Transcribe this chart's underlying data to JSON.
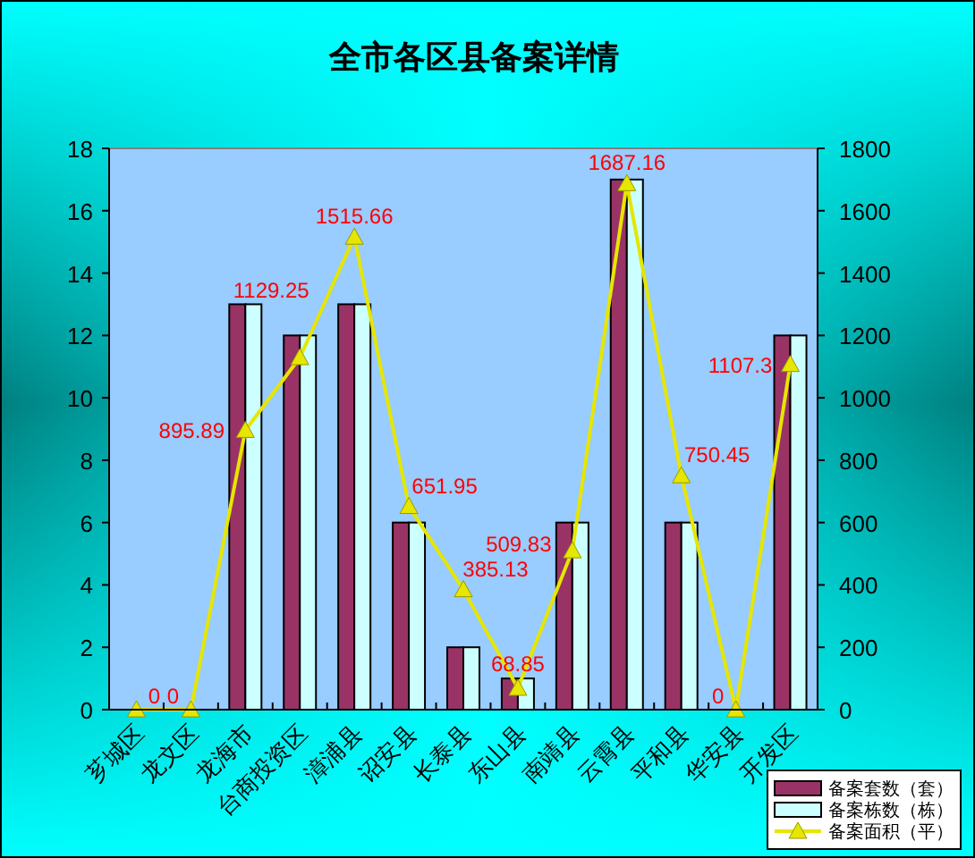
{
  "chart_data": {
    "type": "bar",
    "title": "全市各区县备案详情",
    "categories": [
      "芗城区",
      "龙文区",
      "龙海市",
      "台商投资区",
      "漳浦县",
      "诏安县",
      "长泰县",
      "东山县",
      "南靖县",
      "云霄县",
      "平和县",
      "华安县",
      "开发区"
    ],
    "series": [
      {
        "name": "备案套数（套）",
        "color": "#993366",
        "values": [
          0,
          0,
          13,
          12,
          13,
          6,
          2,
          1,
          6,
          17,
          6,
          0,
          12
        ]
      },
      {
        "name": "备案栋数（栋）",
        "color": "#ccffff",
        "values": [
          0,
          0,
          13,
          12,
          13,
          6,
          2,
          1,
          6,
          17,
          6,
          0,
          12
        ]
      },
      {
        "name": "备案面积（平）",
        "type": "line",
        "axis": "y2",
        "color": "#e6e600",
        "marker": "triangle",
        "values": [
          0,
          0,
          895.89,
          1129.25,
          1515.66,
          651.95,
          385.13,
          68.85,
          509.83,
          1687.16,
          750.45,
          0,
          1107.3
        ],
        "value_labels": [
          "0",
          "0",
          "895.89",
          "1129.25",
          "1515.66",
          "651.95",
          "385.13",
          "68.85",
          "509.83",
          "1687.16",
          "750.45",
          "0",
          "1107.3"
        ]
      }
    ],
    "ylim": [
      0,
      18
    ],
    "yticks": [
      0,
      2,
      4,
      6,
      8,
      10,
      12,
      14,
      16,
      18
    ],
    "y2lim": [
      0,
      1800
    ],
    "y2ticks": [
      0,
      200,
      400,
      600,
      800,
      1000,
      1200,
      1400,
      1600,
      1800
    ],
    "legend": "bottom right",
    "grid": false
  }
}
